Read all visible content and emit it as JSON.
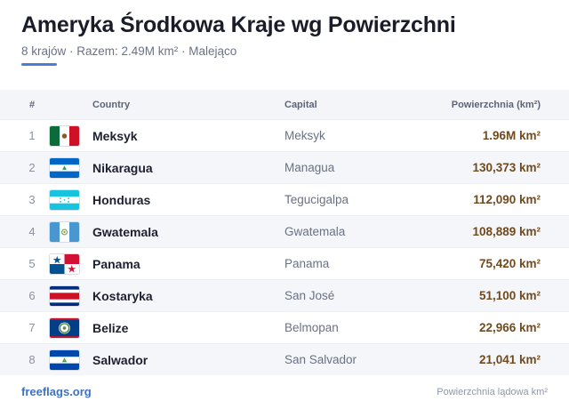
{
  "header": {
    "title": "Ameryka Środkowa Kraje wg Powierzchni",
    "subtitle": "8 krajów · Razem: 2.49M km² · Malejąco",
    "accent_color": "#4a7fd0"
  },
  "table": {
    "columns": {
      "rank": "#",
      "country": "Country",
      "capital": "Capital",
      "area": "Powierzchnia (km²)"
    },
    "rows": [
      {
        "rank": "1",
        "flag": "mexico-flag-icon",
        "country": "Meksyk",
        "capital": "Meksyk",
        "area": "1.96M km²"
      },
      {
        "rank": "2",
        "flag": "nicaragua-flag-icon",
        "country": "Nikaragua",
        "capital": "Managua",
        "area": "130,373 km²"
      },
      {
        "rank": "3",
        "flag": "honduras-flag-icon",
        "country": "Honduras",
        "capital": "Tegucigalpa",
        "area": "112,090 km²"
      },
      {
        "rank": "4",
        "flag": "guatemala-flag-icon",
        "country": "Gwatemala",
        "capital": "Gwatemala",
        "area": "108,889 km²"
      },
      {
        "rank": "5",
        "flag": "panama-flag-icon",
        "country": "Panama",
        "capital": "Panama",
        "area": "75,420 km²"
      },
      {
        "rank": "6",
        "flag": "costa-rica-flag-icon",
        "country": "Kostaryka",
        "capital": "San José",
        "area": "51,100 km²"
      },
      {
        "rank": "7",
        "flag": "belize-flag-icon",
        "country": "Belize",
        "capital": "Belmopan",
        "area": "22,966 km²"
      },
      {
        "rank": "8",
        "flag": "el-salvador-flag-icon",
        "country": "Salwador",
        "capital": "San Salvador",
        "area": "21,041 km²"
      }
    ]
  },
  "footer": {
    "site": "freeflags.org",
    "note": "Powierzchnia lądowa km²"
  },
  "colors": {
    "area_text": "#6e4a1e",
    "link": "#3f72c4"
  }
}
